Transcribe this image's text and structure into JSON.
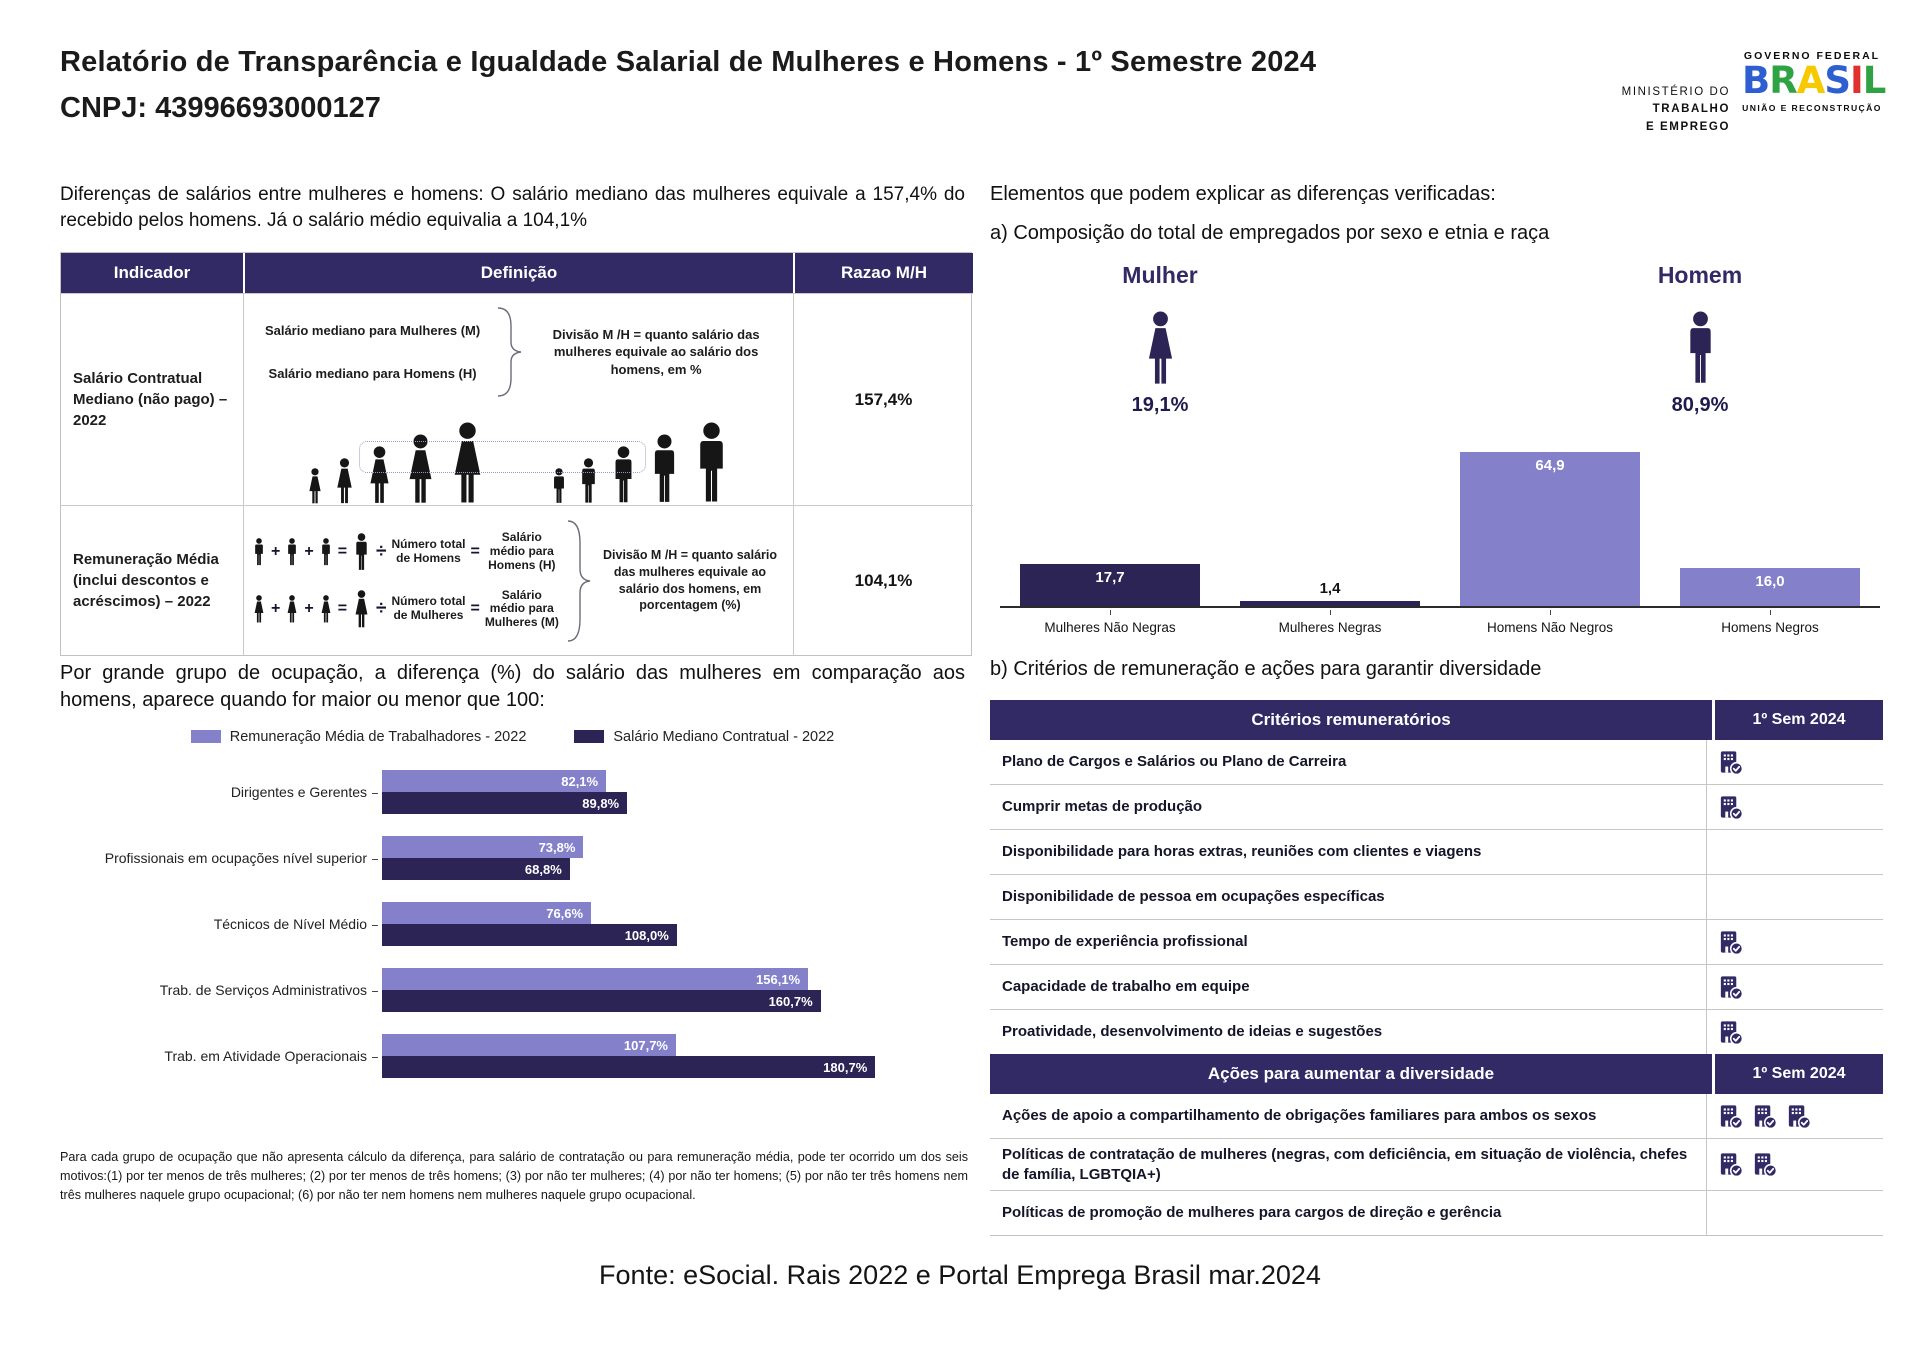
{
  "header": {
    "title": "Relatório de Transparência e Igualdade Salarial de Mulheres e Homens - 1º Semestre 2024",
    "cnpj": "CNPJ: 43996693000127",
    "ministry_logo": {
      "line1": "MINISTÉRIO DO",
      "line2": "TRABALHO",
      "line3": "E EMPREGO"
    },
    "gov_logo": {
      "top": "GOVERNO FEDERAL",
      "brand": "BRASIL",
      "bottom": "UNIÃO E RECONSTRUÇÃO"
    }
  },
  "left": {
    "intro": "Diferenças de salários entre mulheres e homens: O salário mediano das mulheres equivale a 157,4% do recebido pelos homens. Já o salário médio equivalia a 104,1%",
    "indicator_table": {
      "headers": [
        "Indicador",
        "Definição",
        "Razao M/H"
      ],
      "row1": {
        "indicator": "Salário Contratual Mediano (não pago) – 2022",
        "label_women": "Salário mediano para Mulheres (M)",
        "label_men": "Salário mediano para Homens (H)",
        "note": "Divisão M /H = quanto salário das mulheres equivale ao salário dos homens, em %",
        "ratio": "157,4%"
      },
      "row2": {
        "indicator": "Remuneração Média (inclui descontos e acréscimos) – 2022",
        "men_count": "Número total de Homens",
        "men_avg": "Salário médio para Homens (H)",
        "women_count": "Número total de Mulheres",
        "women_avg": "Salário médio para Mulheres (M)",
        "note": "Divisão M /H = quanto salário das mulheres equivale ao salário dos homens, em porcentagem (%)",
        "ratio": "104,1%"
      }
    },
    "occupation_heading": "Por grande grupo de ocupação, a diferença (%) do salário das mulheres em comparação aos homens, aparece quando for maior ou menor que 100:",
    "footnote": "Para cada grupo de ocupação que não apresenta cálculo da diferença, para salário de contratação ou para remuneração média, pode ter ocorrido um dos seis motivos:(1) por ter menos de três mulheres; (2) por ter menos de três homens; (3) por não ter mulheres; (4) por não ter homens; (5) por não ter três homens nem três mulheres naquele grupo ocupacional; (6) por não ter nem homens nem mulheres naquele grupo ocupacional."
  },
  "right": {
    "heading": "Elementos que podem explicar as diferenças verificadas:",
    "subheading_a": "a) Composição do total de empregados por sexo e etnia e raça",
    "gender_split": {
      "woman_label": "Mulher",
      "woman_value": "19,1%",
      "man_label": "Homem",
      "man_value": "80,9%"
    },
    "subheading_b": "b) Critérios de remuneração e ações para garantir diversidade",
    "criteria_table": {
      "header": {
        "label": "Critérios remuneratórios",
        "period": "1º Sem 2024"
      },
      "rows": [
        {
          "label": "Plano de Cargos e Salários ou Plano de Carreira",
          "icons": 1
        },
        {
          "label": "Cumprir metas de produção",
          "icons": 1
        },
        {
          "label": "Disponibilidade para horas extras, reuniões com clientes e viagens",
          "icons": 0
        },
        {
          "label": "Disponibilidade de pessoa em ocupações específicas",
          "icons": 0
        },
        {
          "label": "Tempo de experiência profissional",
          "icons": 1
        },
        {
          "label": "Capacidade de trabalho em equipe",
          "icons": 1
        },
        {
          "label": "Proatividade, desenvolvimento de ideias e sugestões",
          "icons": 1
        }
      ],
      "header2": {
        "label": "Ações para aumentar a diversidade",
        "period": "1º Sem 2024"
      },
      "rows2": [
        {
          "label": "Ações de apoio a compartilhamento de obrigações familiares para ambos os sexos",
          "icons": 3
        },
        {
          "label": "Políticas de contratação de mulheres (negras, com deficiência, em situação de violência, chefes de família, LGBTQIA+)",
          "icons": 2
        },
        {
          "label": "Políticas de promoção de mulheres para cargos de direção e gerência",
          "icons": 0
        }
      ]
    }
  },
  "footer": "Fonte: eSocial. Rais 2022 e Portal Emprega Brasil mar.2024",
  "colors": {
    "dark": "#2b2454",
    "medium": "#4d4396",
    "light": "#8481ca",
    "header": "#312a64",
    "gov_letters": [
      "#2e5fd0",
      "#2fa343",
      "#f6c900",
      "#2e5fd0",
      "#e03131",
      "#2fa343"
    ]
  },
  "chart_data": [
    {
      "type": "bar",
      "title": "Composição do total de empregados por sexo e etnia e raça",
      "categories": [
        "Mulheres Não Negras",
        "Mulheres Negras",
        "Homens Não Negros",
        "Homens Negros"
      ],
      "values": [
        17.7,
        1.4,
        64.9,
        16.0
      ],
      "labels": [
        "17,7",
        "1,4",
        "64,9",
        "16,0"
      ],
      "bar_colors": [
        "dark",
        "dark",
        "light",
        "light"
      ],
      "xlabel": "",
      "ylabel": "",
      "ylim": [
        0,
        70
      ],
      "grid": false,
      "legend_position": "none"
    },
    {
      "type": "bar-horizontal",
      "title": "Diferença (%) do salário das mulheres em comparação aos homens, por grande grupo de ocupação",
      "categories": [
        "Dirigentes e Gerentes",
        "Profissionais em ocupações nível superior",
        "Técnicos de Nível Médio",
        "Trab. de Serviços Administrativos",
        "Trab. em Atividade Operacionais"
      ],
      "series": [
        {
          "name": "Remuneração Média de Trabalhadores - 2022",
          "color": "light",
          "values": [
            82.1,
            73.8,
            76.6,
            156.1,
            107.7
          ],
          "labels": [
            "82,1%",
            "73,8%",
            "76,6%",
            "156,1%",
            "107,7%"
          ]
        },
        {
          "name": "Salário Mediano Contratual - 2022",
          "color": "dark",
          "values": [
            89.8,
            68.8,
            108.0,
            160.7,
            180.7
          ],
          "labels": [
            "89,8%",
            "68,8%",
            "108,0%",
            "160,7%",
            "180,7%"
          ]
        }
      ],
      "xlabel": "",
      "ylabel": "",
      "xlim": [
        0,
        185
      ],
      "grid": false,
      "legend_position": "top"
    }
  ]
}
